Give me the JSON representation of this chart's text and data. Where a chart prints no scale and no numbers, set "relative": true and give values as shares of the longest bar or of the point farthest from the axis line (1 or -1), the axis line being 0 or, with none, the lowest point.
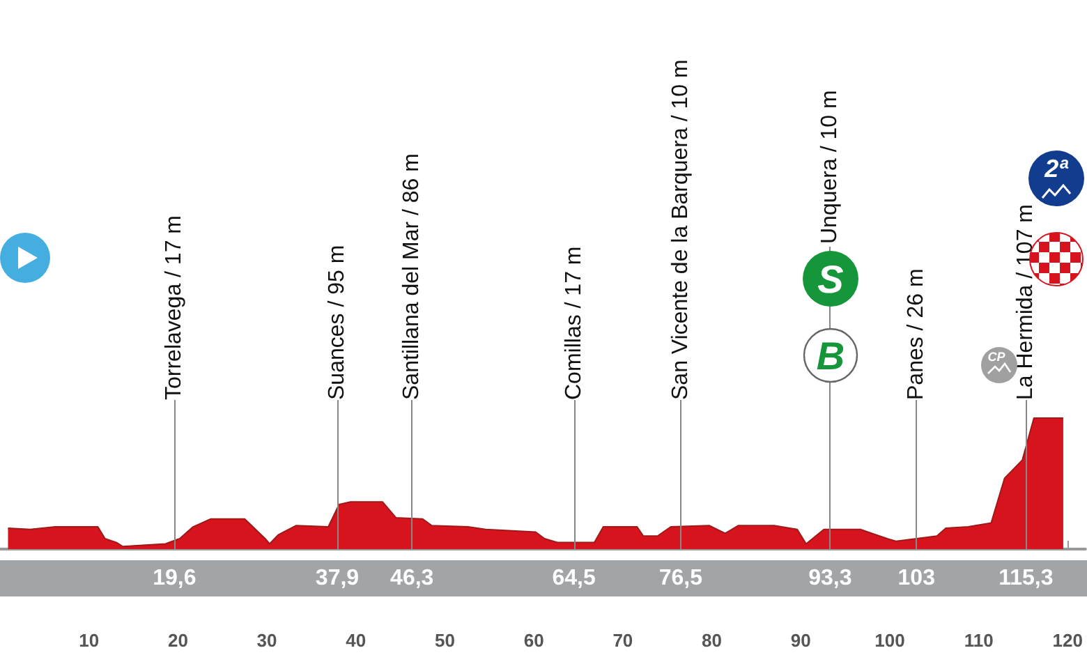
{
  "chart_data": {
    "type": "area",
    "relative": true,
    "color": "#d7141e",
    "x": [
      0.9,
      3.4,
      6.2,
      11.0,
      11.8,
      13.1,
      13.8,
      18.6,
      20.2,
      21.7,
      23.7,
      27.5,
      29.8,
      30.3,
      31.3,
      33.3,
      36.9,
      38.1,
      39.4,
      43.0,
      44.5,
      47.5,
      48.5,
      52.6,
      54.6,
      60.2,
      61.2,
      62.7,
      66.8,
      67.8,
      71.6,
      72.3,
      73.9,
      75.4,
      79.7,
      81.5,
      83.0,
      87.0,
      89.6,
      90.6,
      92.6,
      96.7,
      99.7,
      100.7,
      105.3,
      106.3,
      108.8,
      111.4,
      112.9,
      114.9,
      116.2,
      119.5
    ],
    "values": [
      0.16,
      0.15,
      0.17,
      0.17,
      0.08,
      0.05,
      0.02,
      0.04,
      0.08,
      0.17,
      0.23,
      0.23,
      0.08,
      0.04,
      0.11,
      0.18,
      0.17,
      0.34,
      0.36,
      0.36,
      0.24,
      0.23,
      0.18,
      0.17,
      0.15,
      0.13,
      0.08,
      0.05,
      0.05,
      0.17,
      0.17,
      0.1,
      0.1,
      0.17,
      0.18,
      0.12,
      0.18,
      0.18,
      0.15,
      0.04,
      0.15,
      0.15,
      0.08,
      0.06,
      0.1,
      0.16,
      0.17,
      0.2,
      0.54,
      0.68,
      1,
      1
    ],
    "xlim": [
      0,
      122
    ],
    "xticks": [
      10,
      20,
      30,
      40,
      50,
      60,
      70,
      80,
      90,
      100,
      110,
      120
    ],
    "ref_lines": [
      {
        "axis": "x",
        "value": 19.6,
        "label": "Torrelavega / 17 m"
      },
      {
        "axis": "x",
        "value": 37.9,
        "label": "Suances / 95 m"
      },
      {
        "axis": "x",
        "value": 46.3,
        "label": "Santillana del Mar / 86 m"
      },
      {
        "axis": "x",
        "value": 64.5,
        "label": "Comillas / 17 m"
      },
      {
        "axis": "x",
        "value": 76.5,
        "label": "San Vicente de la Barquera / 10 m"
      },
      {
        "axis": "x",
        "value": 93.3,
        "label": "Unquera / 10 m"
      },
      {
        "axis": "x",
        "value": 103,
        "label": "Panes / 26 m"
      },
      {
        "axis": "x",
        "value": 115.3,
        "label": "La Hermida / 107 m"
      }
    ],
    "annotations": [
      "19,6",
      "37,9",
      "46,3",
      "64,5",
      "76,5",
      "93,3",
      "103",
      "115,3",
      "S",
      "B",
      "CP",
      "2ª"
    ]
  }
}
